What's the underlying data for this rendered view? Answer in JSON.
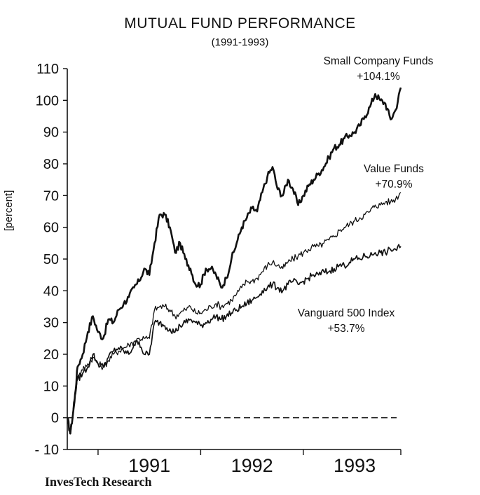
{
  "chart_data": {
    "type": "line",
    "title": "MUTUAL FUND PERFORMANCE",
    "subtitle": "(1991-1993)",
    "ylabel": "[percent]",
    "xlabel": "",
    "source": "InvesTech Research",
    "ylim": [
      -10,
      110
    ],
    "yticks": [
      -10,
      0,
      10,
      20,
      30,
      40,
      50,
      60,
      70,
      80,
      90,
      100,
      110
    ],
    "yticks_labels": [
      "- 10",
      "0",
      "10",
      "20",
      "30",
      "40",
      "50",
      "60",
      "70",
      "80",
      "90",
      "100",
      "110"
    ],
    "xlim": [
      1990.7,
      1993.95
    ],
    "xticks": [
      {
        "label": "1991",
        "x": 1991.0
      },
      {
        "label": "1992",
        "x": 1992.0
      },
      {
        "label": "1993",
        "x": 1993.0
      }
    ],
    "zero_line": {
      "y": 0,
      "style": "dashed"
    },
    "grid": false,
    "series": [
      {
        "name": "Small Company Funds",
        "annotation": [
          "Small Company Funds",
          "+104.1%"
        ],
        "stroke_width": 2.6,
        "x": [
          1990.7,
          1990.73,
          1990.77,
          1990.8,
          1990.85,
          1990.9,
          1990.95,
          1991.0,
          1991.05,
          1991.1,
          1991.15,
          1991.2,
          1991.25,
          1991.3,
          1991.35,
          1991.4,
          1991.45,
          1991.5,
          1991.55,
          1991.6,
          1991.65,
          1991.7,
          1991.75,
          1991.8,
          1991.85,
          1991.9,
          1991.95,
          1992.0,
          1992.05,
          1992.1,
          1992.15,
          1992.2,
          1992.25,
          1992.3,
          1992.35,
          1992.4,
          1992.45,
          1992.5,
          1992.55,
          1992.6,
          1992.65,
          1992.7,
          1992.75,
          1992.8,
          1992.85,
          1992.9,
          1992.95,
          1993.0,
          1993.05,
          1993.1,
          1993.15,
          1993.2,
          1993.25,
          1993.3,
          1993.35,
          1993.4,
          1993.45,
          1993.5,
          1993.55,
          1993.6,
          1993.65,
          1993.7,
          1993.75,
          1993.8,
          1993.85,
          1993.9,
          1993.95
        ],
        "values": [
          0,
          -5,
          5,
          16,
          20,
          27,
          32,
          27,
          25,
          31,
          30,
          34,
          36,
          38,
          41,
          43,
          47,
          45,
          55,
          64,
          64,
          60,
          52,
          55,
          50,
          47,
          42,
          42,
          47,
          47,
          45,
          41,
          44,
          50,
          55,
          60,
          63,
          66,
          65,
          71,
          76,
          79,
          72,
          70,
          75,
          72,
          67,
          70,
          73,
          75,
          77,
          79,
          82,
          85,
          86,
          88,
          89,
          90,
          92,
          95,
          98,
          102,
          100,
          99,
          94,
          97,
          104
        ]
      },
      {
        "name": "Value Funds",
        "annotation": [
          "Value Funds",
          "+70.9%"
        ],
        "stroke_width": 1.3,
        "x": [
          1990.7,
          1990.73,
          1990.77,
          1990.8,
          1990.85,
          1990.9,
          1990.95,
          1991.0,
          1991.05,
          1991.1,
          1991.15,
          1991.2,
          1991.25,
          1991.3,
          1991.35,
          1991.4,
          1991.45,
          1991.5,
          1991.55,
          1991.6,
          1991.65,
          1991.7,
          1991.75,
          1991.8,
          1991.85,
          1991.9,
          1991.95,
          1992.0,
          1992.05,
          1992.1,
          1992.15,
          1992.2,
          1992.25,
          1992.3,
          1992.35,
          1992.4,
          1992.45,
          1992.5,
          1992.55,
          1992.6,
          1992.65,
          1992.7,
          1992.75,
          1992.8,
          1992.85,
          1992.9,
          1992.95,
          1993.0,
          1993.05,
          1993.1,
          1993.15,
          1993.2,
          1993.25,
          1993.3,
          1993.35,
          1993.4,
          1993.45,
          1993.5,
          1993.55,
          1993.6,
          1993.65,
          1993.7,
          1993.75,
          1993.8,
          1993.85,
          1993.9,
          1993.95
        ],
        "values": [
          0,
          -5,
          5,
          13,
          15,
          17,
          19,
          17,
          16,
          18,
          20,
          21,
          22,
          23,
          24,
          25,
          25,
          25,
          34,
          35,
          35,
          34,
          32,
          33,
          34,
          35,
          33,
          33,
          34,
          35,
          36,
          35,
          36,
          37,
          39,
          41,
          43,
          43,
          44,
          46,
          48,
          49,
          48,
          47,
          49,
          50,
          51,
          52,
          53,
          54,
          54,
          55,
          56,
          57,
          59,
          60,
          61,
          62,
          63,
          64,
          65,
          67,
          67,
          68,
          68,
          69,
          71
        ]
      },
      {
        "name": "Vanguard 500 Index",
        "annotation": [
          "Vanguard 500 Index",
          "+53.7%"
        ],
        "stroke_width": 1.7,
        "x": [
          1990.7,
          1990.73,
          1990.77,
          1990.8,
          1990.85,
          1990.9,
          1990.95,
          1991.0,
          1991.05,
          1991.1,
          1991.15,
          1991.2,
          1991.25,
          1991.3,
          1991.35,
          1991.4,
          1991.45,
          1991.5,
          1991.55,
          1991.6,
          1991.65,
          1991.7,
          1991.75,
          1991.8,
          1991.85,
          1991.9,
          1991.95,
          1992.0,
          1992.05,
          1992.1,
          1992.15,
          1992.2,
          1992.25,
          1992.3,
          1992.35,
          1992.4,
          1992.45,
          1992.5,
          1992.55,
          1992.6,
          1992.65,
          1992.7,
          1992.75,
          1992.8,
          1992.85,
          1992.9,
          1992.95,
          1993.0,
          1993.05,
          1993.1,
          1993.15,
          1993.2,
          1993.25,
          1993.3,
          1993.35,
          1993.4,
          1993.45,
          1993.5,
          1993.55,
          1993.6,
          1993.65,
          1993.7,
          1993.75,
          1993.8,
          1993.85,
          1993.9,
          1993.95
        ],
        "values": [
          0,
          -5,
          6,
          12,
          14,
          16,
          20,
          17,
          16,
          19,
          21,
          22,
          21,
          20,
          23,
          24,
          20,
          20,
          30,
          30,
          29,
          28,
          27,
          29,
          30,
          31,
          30,
          29,
          30,
          31,
          32,
          31,
          32,
          33,
          34,
          35,
          36,
          37,
          38,
          40,
          41,
          42,
          41,
          40,
          42,
          43,
          42,
          43,
          44,
          45,
          45,
          46,
          46,
          47,
          48,
          48,
          49,
          50,
          50,
          51,
          51,
          52,
          52,
          52,
          53,
          53,
          54
        ]
      }
    ]
  }
}
